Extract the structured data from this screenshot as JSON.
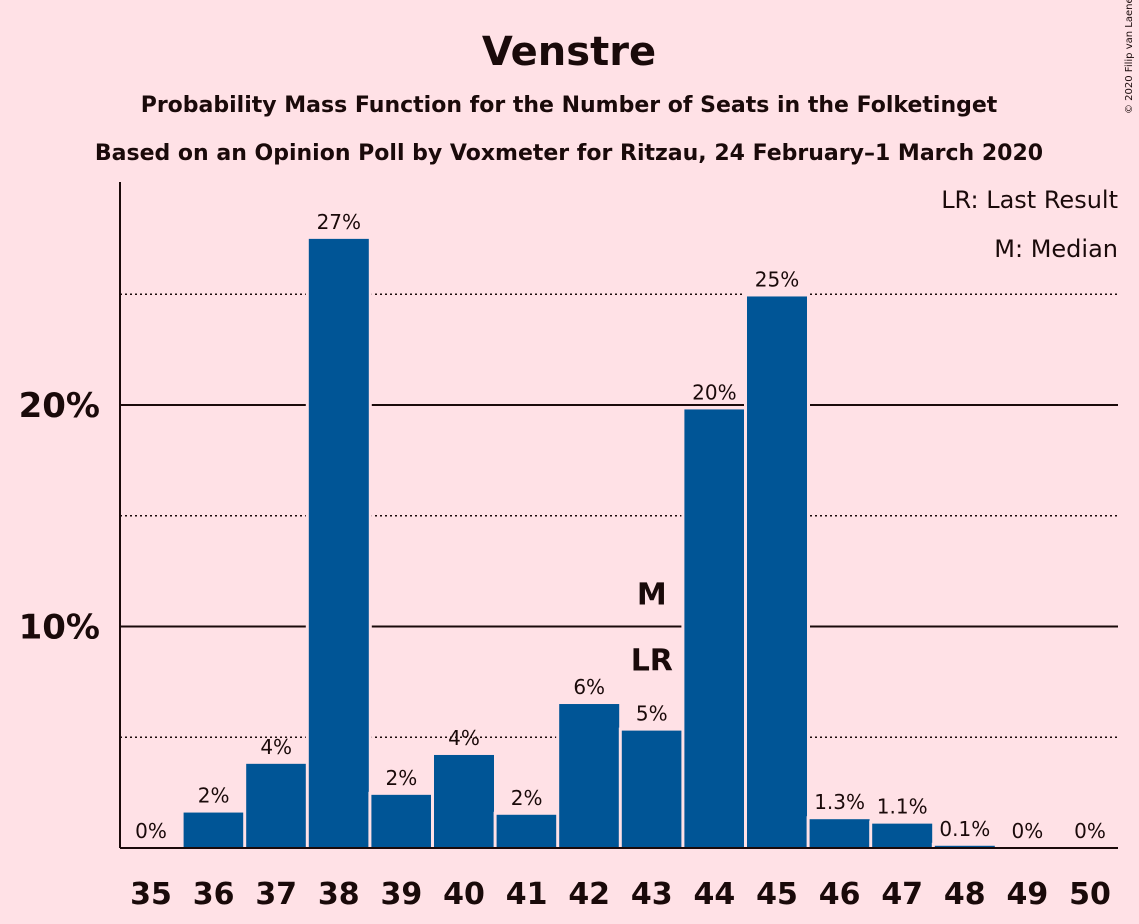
{
  "copyright": "© 2020 Filip van Laenen",
  "chart_data": {
    "type": "bar",
    "title": "Venstre",
    "subtitle": "Probability Mass Function for the Number of Seats in the Folketinget",
    "subtitle2": "Based on an Opinion Poll by Voxmeter for Ritzau, 24 February–1 March 2020",
    "legend": [
      "LR: Last Result",
      "M: Median"
    ],
    "legend_position": "top-right",
    "categories": [
      "35",
      "36",
      "37",
      "38",
      "39",
      "40",
      "41",
      "42",
      "43",
      "44",
      "45",
      "46",
      "47",
      "48",
      "49",
      "50"
    ],
    "values": [
      0,
      1.6,
      3.8,
      27.5,
      2.4,
      4.2,
      1.5,
      6.5,
      5.3,
      19.8,
      24.9,
      1.3,
      1.1,
      0.1,
      0,
      0
    ],
    "labels": [
      "0%",
      "2%",
      "4%",
      "27%",
      "2%",
      "4%",
      "2%",
      "6%",
      "5%",
      "20%",
      "25%",
      "1.3%",
      "1.1%",
      "0.1%",
      "0%",
      "0%"
    ],
    "y_ticks": [
      {
        "value": 10,
        "label": "10%"
      },
      {
        "value": 20,
        "label": "20%"
      }
    ],
    "minor_gridlines": [
      5,
      15,
      25
    ],
    "ylim": [
      0,
      30
    ],
    "markers": {
      "median": {
        "category": "43",
        "label": "M"
      },
      "last_result": {
        "category": "43",
        "label": "LR"
      }
    },
    "bar_color": "#005596",
    "background_color": "#FFE1E6"
  }
}
